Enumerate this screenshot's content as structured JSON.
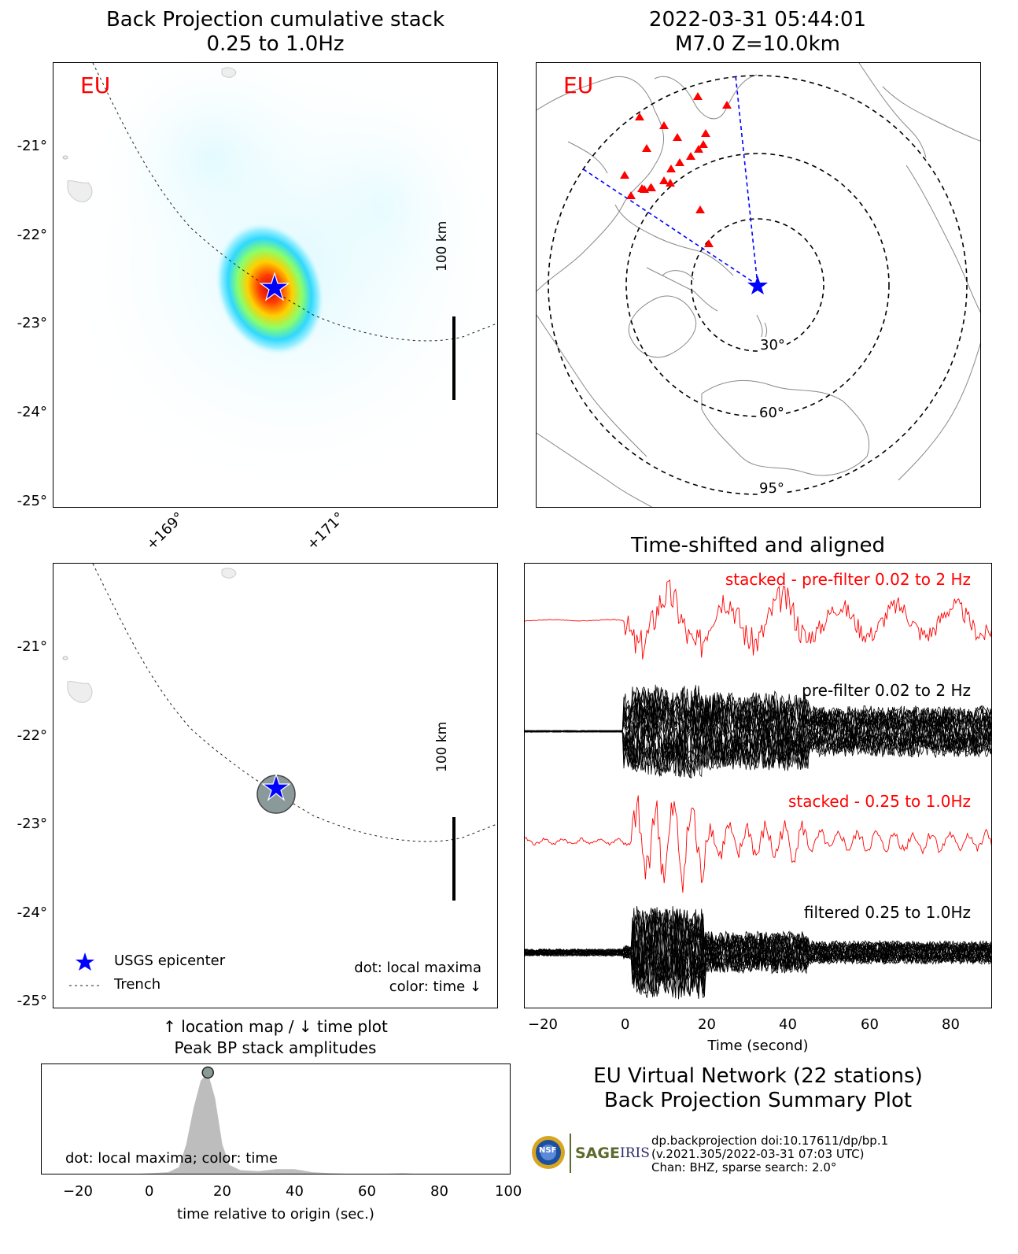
{
  "panels": {
    "bp_stack": {
      "title": "Back Projection cumulative stack",
      "subtitle": "0.25 to 1.0Hz",
      "network_label": "EU",
      "scale_label": "100 km",
      "lat_ticks": [
        "-21°",
        "-22°",
        "-23°",
        "-24°",
        "-25°"
      ],
      "lon_ticks": [
        "+169°",
        "+171°"
      ]
    },
    "event_map": {
      "title": "2022-03-31 05:44:01",
      "subtitle": "M7.0 Z=10.0km",
      "network_label": "EU",
      "ring_labels": [
        "30°",
        "60°",
        "95°"
      ]
    },
    "location_map": {
      "scale_label": "100 km",
      "lat_ticks": [
        "-21°",
        "-22°",
        "-23°",
        "-24°",
        "-25°"
      ],
      "legend": {
        "epicenter": "USGS epicenter",
        "trench": "Trench"
      },
      "note_line1": "dot: local maxima",
      "note_line2": "color: time ↓",
      "caption_line1": "↑ location map / ↓ time plot",
      "caption_line2": "Peak BP stack amplitudes"
    },
    "waveforms": {
      "title": "Time-shifted and aligned",
      "labels": {
        "stacked_prefilter": "stacked - pre-filter 0.02 to 2 Hz",
        "prefilter": "pre-filter 0.02 to 2 Hz",
        "stacked_filtered": "stacked - 0.25 to 1.0Hz",
        "filtered": "filtered 0.25 to 1.0Hz"
      },
      "xlabel": "Time (second)",
      "xticks": [
        "−20",
        "0",
        "20",
        "40",
        "60",
        "80"
      ]
    },
    "time_plot": {
      "note": "dot: local maxima; color: time",
      "xlabel": "time relative to origin (sec.)",
      "xticks": [
        "−20",
        "0",
        "20",
        "40",
        "60",
        "80",
        "100"
      ]
    }
  },
  "summary": {
    "line1": "EU Virtual Network (22 stations)",
    "line2": "Back Projection Summary Plot",
    "credit1": "dp.backprojection doi:10.17611/dp/bp.1",
    "credit2": "(v.2021.305/2022-03-31 07:03 UTC)",
    "credit3": "Chan: BHZ, sparse search: 2.0°",
    "logo_text1": "NSF",
    "logo_text2": "SAGE",
    "logo_text3": "IRIS"
  },
  "chart_data": [
    {
      "type": "heatmap",
      "title": "Back Projection cumulative stack",
      "subtitle": "0.25 to 1.0Hz",
      "ylim": [
        -25.1,
        -20.1
      ],
      "epicenter": {
        "lat": -22.6,
        "lon": 170.3
      },
      "peak": {
        "lat": -22.65,
        "lon": 170.3
      }
    },
    {
      "type": "line",
      "xlabel": "Time (second)",
      "xlim": [
        -24,
        90
      ],
      "series": [
        {
          "name": "stacked - pre-filter 0.02 to 2 Hz",
          "color": "#ff0000"
        },
        {
          "name": "pre-filter 0.02 to 2 Hz",
          "color": "#000000"
        },
        {
          "name": "stacked - 0.25 to 1.0Hz",
          "color": "#ff0000"
        },
        {
          "name": "filtered 0.25 to 1.0Hz",
          "color": "#000000"
        }
      ]
    },
    {
      "type": "area",
      "xlabel": "time relative to origin (sec.)",
      "xlim": [
        -30,
        100
      ],
      "x": [
        -30,
        -20,
        -10,
        0,
        5,
        8,
        10,
        12,
        14,
        16,
        18,
        20,
        22,
        25,
        30,
        35,
        40,
        45,
        50,
        60,
        70,
        80,
        100
      ],
      "values": [
        0,
        0,
        0.005,
        0.02,
        0.03,
        0.08,
        0.3,
        0.65,
        0.92,
        1.0,
        0.75,
        0.3,
        0.1,
        0.05,
        0.04,
        0.06,
        0.06,
        0.03,
        0.02,
        0.01,
        0.02,
        0.005,
        0
      ],
      "local_maximum": {
        "x": 16,
        "y": 1.0
      },
      "ylim": [
        0,
        1.08
      ]
    }
  ]
}
